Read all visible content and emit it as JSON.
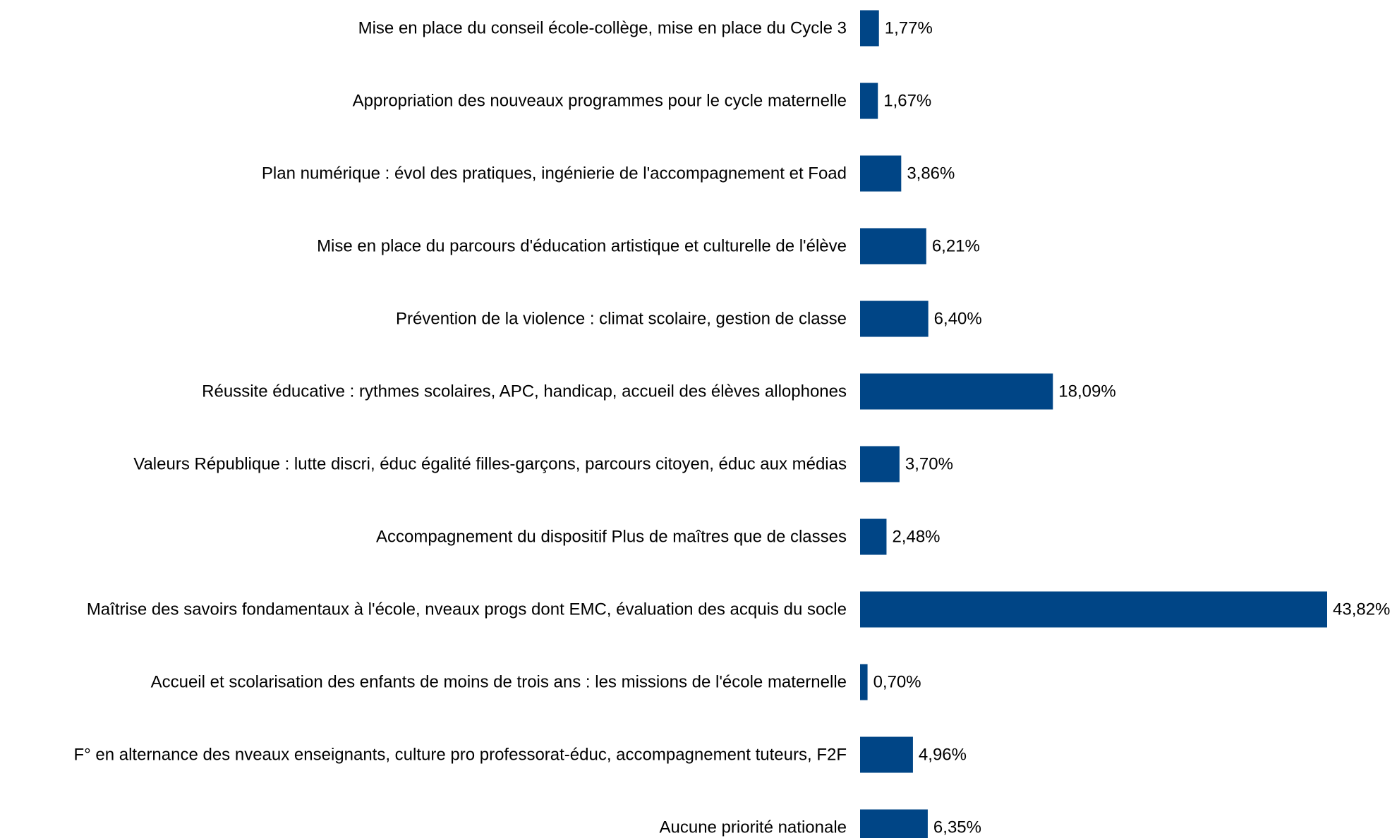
{
  "chart_data": {
    "type": "bar",
    "orientation": "horizontal",
    "categories": [
      "Mise en place du conseil école-collège, mise en place du Cycle 3",
      "Appropriation des nouveaux programmes pour le cycle maternelle",
      "Plan numérique : évol des pratiques, ingénierie de l'accompagnement et Foad",
      "Mise en place du parcours d'éducation artistique et culturelle de l'élève",
      "Prévention de la violence : climat scolaire, gestion de classe",
      "Réussite éducative : rythmes scolaires, APC, handicap, accueil des élèves allophones",
      "Valeurs République : lutte discri, éduc égalité filles-garçons, parcours citoyen, éduc aux médias",
      "Accompagnement du dispositif Plus de maîtres que de classes",
      "Maîtrise des savoirs fondamentaux à l'école, nveaux progs dont EMC, évaluation des acquis du socle",
      "Accueil et scolarisation des enfants de moins de trois ans : les missions de l'école maternelle",
      "F° en alternance des nveaux enseignants, culture pro professorat-éduc, accompagnement tuteurs, F2F",
      "Aucune priorité nationale"
    ],
    "values": [
      1.77,
      1.67,
      3.86,
      6.21,
      6.4,
      18.09,
      3.7,
      2.48,
      43.82,
      0.7,
      4.96,
      6.35
    ],
    "value_labels": [
      "1,77%",
      "1,67%",
      "3,86%",
      "6,21%",
      "6,40%",
      "18,09%",
      "3,70%",
      "2,48%",
      "43,82%",
      "0,70%",
      "4,96%",
      "6,35%"
    ],
    "xlim": [
      0,
      43.82
    ],
    "grid": false,
    "legend": "none",
    "bar_color": "#004586"
  }
}
